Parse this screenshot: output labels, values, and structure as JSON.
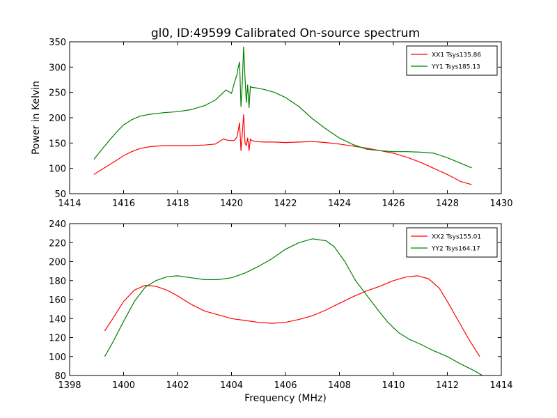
{
  "chart_data": [
    {
      "type": "line",
      "title": "gl0, ID:49599 Calibrated On-source spectrum",
      "xlabel": "",
      "ylabel": "Power in Kelvin",
      "xlim": [
        1414,
        1430
      ],
      "ylim": [
        50,
        350
      ],
      "xticks": [
        "1414",
        "1416",
        "1418",
        "1420",
        "1422",
        "1424",
        "1426",
        "1428",
        "1430"
      ],
      "yticks": [
        "50",
        "100",
        "150",
        "200",
        "250",
        "300",
        "350"
      ],
      "legend_position": "top-right",
      "grid": false,
      "series": [
        {
          "name": "XX1 Tsys135.86",
          "color": "#ff0000",
          "x": [
            1414.9,
            1415.2,
            1415.5,
            1415.8,
            1416.0,
            1416.3,
            1416.6,
            1417.0,
            1417.5,
            1418.0,
            1418.5,
            1419.0,
            1419.4,
            1419.7,
            1419.9,
            1420.1,
            1420.2,
            1420.25,
            1420.3,
            1420.35,
            1420.4,
            1420.45,
            1420.5,
            1420.55,
            1420.6,
            1420.65,
            1420.7,
            1420.75,
            1420.9,
            1421.2,
            1421.6,
            1422.0,
            1422.5,
            1423.0,
            1423.5,
            1424.0,
            1424.5,
            1425.0,
            1425.5,
            1426.0,
            1426.5,
            1427.0,
            1427.5,
            1428.0,
            1428.5,
            1428.9
          ],
          "y": [
            88,
            98,
            108,
            118,
            125,
            133,
            139,
            143,
            145,
            145,
            145,
            146,
            148,
            158,
            155,
            155,
            162,
            175,
            190,
            135,
            168,
            206,
            150,
            145,
            160,
            135,
            158,
            155,
            153,
            152,
            152,
            151,
            152,
            153,
            151,
            148,
            144,
            140,
            135,
            130,
            122,
            112,
            100,
            88,
            74,
            68
          ]
        },
        {
          "name": "YY1 Tsys185.13",
          "color": "#008000",
          "x": [
            1414.9,
            1415.2,
            1415.5,
            1415.8,
            1416.0,
            1416.3,
            1416.6,
            1417.0,
            1417.5,
            1418.0,
            1418.5,
            1419.0,
            1419.4,
            1419.7,
            1419.8,
            1420.0,
            1420.1,
            1420.2,
            1420.25,
            1420.3,
            1420.35,
            1420.4,
            1420.45,
            1420.5,
            1420.55,
            1420.6,
            1420.65,
            1420.7,
            1420.75,
            1420.9,
            1421.2,
            1421.6,
            1422.0,
            1422.5,
            1423.0,
            1423.5,
            1424.0,
            1424.5,
            1425.0,
            1425.5,
            1426.0,
            1426.5,
            1427.0,
            1427.5,
            1428.0,
            1428.5,
            1428.9
          ],
          "y": [
            118,
            138,
            157,
            175,
            186,
            196,
            203,
            207,
            210,
            212,
            216,
            224,
            235,
            250,
            255,
            248,
            268,
            285,
            300,
            310,
            222,
            268,
            340,
            280,
            230,
            265,
            220,
            262,
            260,
            259,
            256,
            250,
            240,
            222,
            198,
            178,
            160,
            147,
            138,
            135,
            133,
            133,
            132,
            130,
            121,
            110,
            101
          ]
        }
      ]
    },
    {
      "type": "line",
      "title": "",
      "xlabel": "Frequency (MHz)",
      "ylabel": "",
      "xlim": [
        1398,
        1414
      ],
      "ylim": [
        80,
        240
      ],
      "xticks": [
        "1398",
        "1400",
        "1402",
        "1404",
        "1406",
        "1408",
        "1410",
        "1412",
        "1414"
      ],
      "yticks": [
        "80",
        "100",
        "120",
        "140",
        "160",
        "180",
        "200",
        "220",
        "240"
      ],
      "legend_position": "top-right",
      "grid": false,
      "series": [
        {
          "name": "XX2 Tsys155.01",
          "color": "#ff0000",
          "x": [
            1399.3,
            1399.6,
            1400.0,
            1400.4,
            1400.8,
            1401.2,
            1401.6,
            1402.0,
            1402.5,
            1403.0,
            1403.5,
            1404.0,
            1404.5,
            1405.0,
            1405.5,
            1406.0,
            1406.5,
            1407.0,
            1407.5,
            1408.0,
            1408.5,
            1409.0,
            1409.5,
            1410.0,
            1410.5,
            1410.9,
            1411.3,
            1411.7,
            1412.0,
            1412.4,
            1412.8,
            1413.2
          ],
          "y": [
            127,
            140,
            158,
            170,
            175,
            174,
            170,
            164,
            155,
            148,
            144,
            140,
            138,
            136,
            135,
            136,
            139,
            143,
            149,
            156,
            163,
            169,
            174,
            180,
            184,
            185,
            182,
            172,
            158,
            138,
            118,
            100
          ]
        },
        {
          "name": "YY2 Tsys164.17",
          "color": "#008000",
          "x": [
            1399.3,
            1399.6,
            1400.0,
            1400.4,
            1400.8,
            1401.2,
            1401.6,
            1402.0,
            1402.5,
            1403.0,
            1403.5,
            1404.0,
            1404.5,
            1405.0,
            1405.5,
            1406.0,
            1406.5,
            1407.0,
            1407.5,
            1407.8,
            1408.2,
            1408.6,
            1409.0,
            1409.4,
            1409.8,
            1410.2,
            1410.6,
            1411.0,
            1411.5,
            1412.0,
            1412.5,
            1413.0,
            1413.3
          ],
          "y": [
            100,
            115,
            137,
            158,
            173,
            180,
            184,
            185,
            183,
            181,
            181,
            183,
            188,
            195,
            203,
            213,
            220,
            224,
            222,
            216,
            200,
            180,
            165,
            150,
            136,
            125,
            118,
            113,
            106,
            100,
            92,
            85,
            80
          ]
        }
      ]
    }
  ]
}
